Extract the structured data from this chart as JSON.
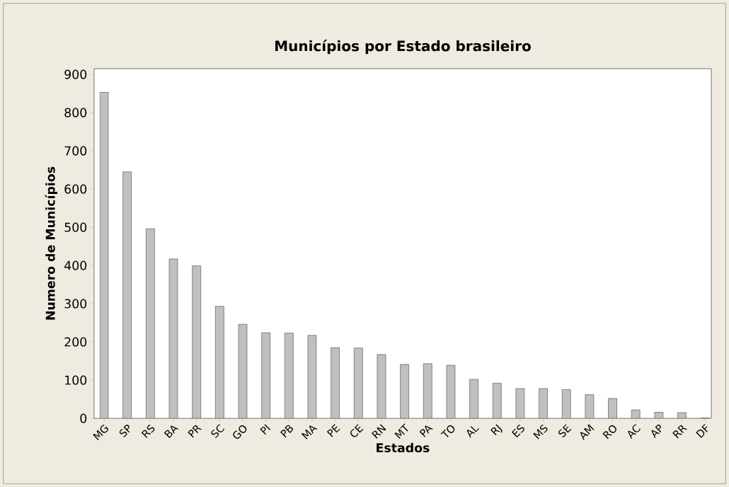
{
  "chart_data": {
    "type": "bar",
    "title": "Municípios por Estado brasileiro",
    "xlabel": "Estados",
    "ylabel": "Numero de Municípios",
    "categories": [
      "MG",
      "SP",
      "RS",
      "BA",
      "PR",
      "SC",
      "GO",
      "PI",
      "PB",
      "MA",
      "PE",
      "CE",
      "RN",
      "MT",
      "PA",
      "TO",
      "AL",
      "RJ",
      "ES",
      "MS",
      "SE",
      "AM",
      "RO",
      "AC",
      "AP",
      "RR",
      "DF"
    ],
    "values": [
      853,
      645,
      496,
      417,
      399,
      293,
      246,
      224,
      223,
      217,
      185,
      184,
      167,
      141,
      143,
      139,
      102,
      92,
      78,
      78,
      75,
      62,
      52,
      22,
      16,
      15,
      1
    ],
    "color": "#c0c0c0",
    "ylim": [
      0,
      915
    ],
    "yticks": [
      0,
      100,
      200,
      300,
      400,
      500,
      600,
      700,
      800,
      900
    ]
  }
}
